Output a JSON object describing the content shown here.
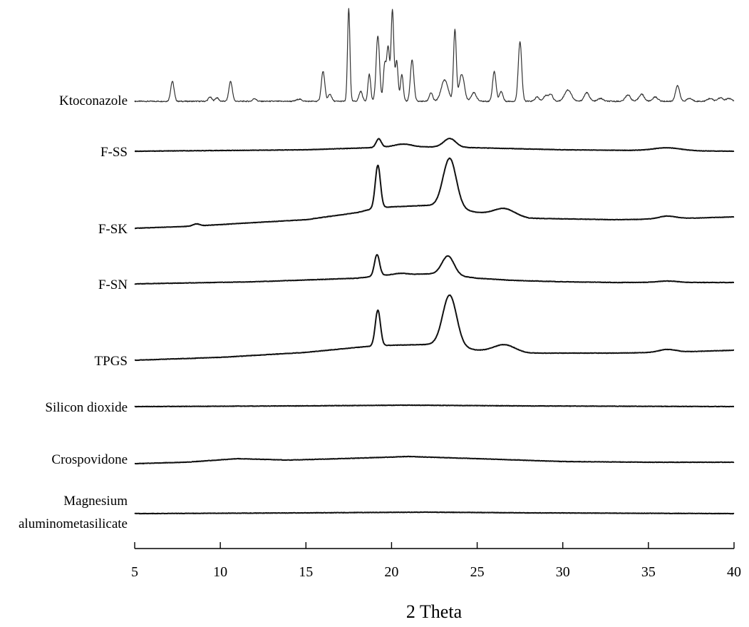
{
  "chart_data": {
    "type": "line",
    "title": "",
    "xlabel": "2 Theta",
    "ylabel": "",
    "xlim": [
      5,
      40
    ],
    "x_ticks": [
      "5",
      "10",
      "15",
      "20",
      "25",
      "30",
      "35",
      "40"
    ],
    "grid": false,
    "legend": "none",
    "series": [
      {
        "name": "Ktoconazole",
        "label_lines": [
          "Ktoconazole"
        ],
        "baseline": 2,
        "peaks": [
          {
            "x": 7.2,
            "h": 28,
            "w": 0.1
          },
          {
            "x": 9.4,
            "h": 6,
            "w": 0.1
          },
          {
            "x": 9.8,
            "h": 5,
            "w": 0.1
          },
          {
            "x": 10.6,
            "h": 28,
            "w": 0.1
          },
          {
            "x": 12.0,
            "h": 4,
            "w": 0.1
          },
          {
            "x": 14.6,
            "h": 3,
            "w": 0.15
          },
          {
            "x": 16.0,
            "h": 42,
            "w": 0.1
          },
          {
            "x": 16.4,
            "h": 10,
            "w": 0.1
          },
          {
            "x": 17.5,
            "h": 130,
            "w": 0.07
          },
          {
            "x": 18.2,
            "h": 14,
            "w": 0.1
          },
          {
            "x": 18.7,
            "h": 38,
            "w": 0.08
          },
          {
            "x": 19.2,
            "h": 92,
            "w": 0.1
          },
          {
            "x": 19.6,
            "h": 52,
            "w": 0.08
          },
          {
            "x": 19.8,
            "h": 75,
            "w": 0.08
          },
          {
            "x": 20.05,
            "h": 128,
            "w": 0.08
          },
          {
            "x": 20.3,
            "h": 56,
            "w": 0.08
          },
          {
            "x": 20.6,
            "h": 38,
            "w": 0.08
          },
          {
            "x": 21.2,
            "h": 58,
            "w": 0.1
          },
          {
            "x": 22.3,
            "h": 12,
            "w": 0.1
          },
          {
            "x": 23.1,
            "h": 30,
            "w": 0.2
          },
          {
            "x": 23.7,
            "h": 100,
            "w": 0.08
          },
          {
            "x": 24.1,
            "h": 38,
            "w": 0.15
          },
          {
            "x": 24.8,
            "h": 12,
            "w": 0.15
          },
          {
            "x": 26.0,
            "h": 42,
            "w": 0.1
          },
          {
            "x": 26.4,
            "h": 14,
            "w": 0.1
          },
          {
            "x": 27.5,
            "h": 84,
            "w": 0.1
          },
          {
            "x": 28.5,
            "h": 6,
            "w": 0.12
          },
          {
            "x": 29.0,
            "h": 8,
            "w": 0.12
          },
          {
            "x": 29.3,
            "h": 10,
            "w": 0.12
          },
          {
            "x": 30.3,
            "h": 16,
            "w": 0.2
          },
          {
            "x": 31.4,
            "h": 12,
            "w": 0.15
          },
          {
            "x": 32.2,
            "h": 4,
            "w": 0.15
          },
          {
            "x": 33.8,
            "h": 9,
            "w": 0.15
          },
          {
            "x": 34.6,
            "h": 10,
            "w": 0.15
          },
          {
            "x": 35.4,
            "h": 6,
            "w": 0.15
          },
          {
            "x": 36.7,
            "h": 22,
            "w": 0.12
          },
          {
            "x": 37.4,
            "h": 4,
            "w": 0.15
          },
          {
            "x": 38.6,
            "h": 4,
            "w": 0.15
          },
          {
            "x": 39.2,
            "h": 5,
            "w": 0.15
          },
          {
            "x": 39.7,
            "h": 4,
            "w": 0.15
          }
        ]
      },
      {
        "name": "F-SS",
        "label_lines": [
          "F-SS"
        ],
        "baseline": [
          [
            5,
            0
          ],
          [
            15,
            2
          ],
          [
            20,
            6
          ],
          [
            23,
            6
          ],
          [
            30,
            2
          ],
          [
            40,
            0
          ]
        ],
        "peaks": [
          {
            "x": 19.25,
            "h": 12,
            "w": 0.15
          },
          {
            "x": 20.7,
            "h": 4,
            "w": 0.5
          },
          {
            "x": 23.4,
            "h": 12,
            "w": 0.35
          },
          {
            "x": 36.1,
            "h": 4,
            "w": 0.8
          }
        ]
      },
      {
        "name": "F-SK",
        "label_lines": [
          "F-SK"
        ],
        "baseline": [
          [
            5,
            0
          ],
          [
            8.5,
            3
          ],
          [
            12,
            8
          ],
          [
            15,
            12
          ],
          [
            18,
            22
          ],
          [
            19,
            28
          ],
          [
            20,
            30
          ],
          [
            22,
            32
          ],
          [
            23,
            32
          ],
          [
            25,
            22
          ],
          [
            28,
            14
          ],
          [
            33,
            12
          ],
          [
            36,
            13
          ],
          [
            40,
            16
          ]
        ],
        "peaks": [
          {
            "x": 8.6,
            "h": 3,
            "w": 0.2
          },
          {
            "x": 19.2,
            "h": 60,
            "w": 0.15
          },
          {
            "x": 23.4,
            "h": 68,
            "w": 0.38
          },
          {
            "x": 26.6,
            "h": 10,
            "w": 0.6
          },
          {
            "x": 36.1,
            "h": 4,
            "w": 0.5
          }
        ]
      },
      {
        "name": "F-SN",
        "label_lines": [
          "F-SN"
        ],
        "baseline": [
          [
            5,
            0
          ],
          [
            12,
            3
          ],
          [
            18,
            8
          ],
          [
            19.5,
            12
          ],
          [
            22,
            14
          ],
          [
            23,
            14
          ],
          [
            25,
            8
          ],
          [
            27,
            5
          ],
          [
            30,
            3
          ],
          [
            33,
            2
          ],
          [
            36,
            2
          ],
          [
            40,
            2
          ]
        ],
        "peaks": [
          {
            "x": 19.15,
            "h": 30,
            "w": 0.15
          },
          {
            "x": 20.5,
            "h": 2,
            "w": 0.4
          },
          {
            "x": 23.3,
            "h": 26,
            "w": 0.35
          },
          {
            "x": 36.1,
            "h": 2,
            "w": 0.6
          }
        ]
      },
      {
        "name": "TPGS",
        "label_lines": [
          "TPGS"
        ],
        "baseline": [
          [
            5,
            0
          ],
          [
            10,
            4
          ],
          [
            15,
            11
          ],
          [
            18,
            18
          ],
          [
            19,
            20
          ],
          [
            20,
            21
          ],
          [
            22,
            22
          ],
          [
            23,
            23
          ],
          [
            25,
            14
          ],
          [
            28,
            10
          ],
          [
            33,
            10
          ],
          [
            36,
            11
          ],
          [
            40,
            14
          ]
        ],
        "peaks": [
          {
            "x": 19.2,
            "h": 50,
            "w": 0.15
          },
          {
            "x": 23.4,
            "h": 70,
            "w": 0.4
          },
          {
            "x": 26.6,
            "h": 10,
            "w": 0.6
          },
          {
            "x": 36.1,
            "h": 4,
            "w": 0.5
          }
        ]
      },
      {
        "name": "Silicon dioxide",
        "label_lines": [
          "Silicon dioxide"
        ],
        "baseline": [
          [
            5,
            0
          ],
          [
            15,
            1
          ],
          [
            21,
            2
          ],
          [
            27,
            1
          ],
          [
            40,
            0
          ]
        ],
        "peaks": []
      },
      {
        "name": "Crospovidone",
        "label_lines": [
          "Crospovidone"
        ],
        "baseline": [
          [
            5,
            0
          ],
          [
            8,
            2
          ],
          [
            11,
            7
          ],
          [
            14,
            5
          ],
          [
            17,
            7
          ],
          [
            21,
            10
          ],
          [
            25,
            7
          ],
          [
            30,
            3
          ],
          [
            35,
            2
          ],
          [
            40,
            2
          ]
        ],
        "peaks": []
      },
      {
        "name": "Magnesium aluminometasilicate",
        "label_lines": [
          "Magnesium",
          "aluminometasilicate"
        ],
        "baseline": [
          [
            5,
            0
          ],
          [
            15,
            1
          ],
          [
            22,
            2
          ],
          [
            28,
            1
          ],
          [
            40,
            0
          ]
        ],
        "peaks": []
      }
    ]
  }
}
